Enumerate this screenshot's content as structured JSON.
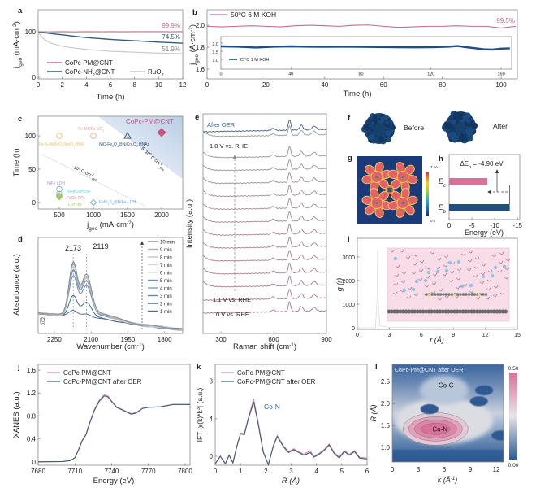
{
  "colors": {
    "pink": "#c9698f",
    "navy": "#1f4e87",
    "steel": "#2f5f80",
    "gray": "#c8c8c8"
  },
  "chart_data": [
    {
      "panel": "a",
      "type": "line",
      "xlabel": "Time (h)",
      "ylabel": "j_{geo} (mA·cm^{-2})",
      "xlim": [
        0,
        12
      ],
      "ylim": [
        0,
        140
      ],
      "xticks": [
        0,
        2,
        4,
        6,
        8,
        10,
        12
      ],
      "yticks": [
        0,
        100
      ],
      "series": [
        {
          "name": "CoPc-PM@CNT",
          "color": "#c9698f",
          "end_label": "99.9%",
          "x": [
            0,
            1,
            2,
            3,
            4,
            5,
            6,
            7,
            8,
            9,
            10,
            11,
            12
          ],
          "y": [
            100,
            99.5,
            100,
            99.6,
            100,
            99.7,
            100,
            99.8,
            100,
            99.9,
            100,
            99.8,
            99.9
          ]
        },
        {
          "name": "CoPc-NH_{2}@CNT",
          "color": "#2f5f80",
          "end_label": "74.5%",
          "x": [
            0,
            1,
            2,
            3,
            4,
            5,
            6,
            7,
            8,
            9,
            10,
            11,
            12
          ],
          "y": [
            100,
            96,
            93,
            90,
            87,
            85,
            83,
            81.5,
            80,
            78.5,
            77,
            75.8,
            74.5
          ]
        },
        {
          "name": "RuO_{2}",
          "color": "#c8c8c8",
          "end_label": "51.9%",
          "x": [
            0,
            0.3,
            0.7,
            1,
            2,
            3,
            4,
            6,
            8,
            10,
            12
          ],
          "y": [
            100,
            88,
            80,
            75,
            68,
            64,
            61,
            57,
            55,
            53,
            51.9
          ]
        }
      ]
    },
    {
      "panel": "b",
      "type": "line",
      "xlabel": "Time (h)",
      "ylabel": "j_{geo} (A·cm^{-2})",
      "xlim": [
        0,
        105
      ],
      "ylim": [
        1.5,
        2.14
      ],
      "xticks": [
        0,
        20,
        40,
        60,
        80,
        100
      ],
      "yticks": [
        1.6,
        1.8,
        2.0
      ],
      "series": [
        {
          "name": "50^{o}C 6 M KOH",
          "color": "#c9698f",
          "end_label": "99.5%",
          "x": [
            0,
            5,
            10,
            15,
            20,
            25,
            30,
            35,
            40,
            45,
            50,
            55,
            60,
            65,
            70,
            75,
            80,
            85,
            90,
            95,
            100,
            105
          ],
          "y": [
            1.99,
            1.985,
            1.99,
            1.995,
            1.99,
            1.985,
            1.995,
            2.0,
            1.995,
            1.99,
            2.0,
            2.002,
            1.99,
            1.98,
            1.985,
            1.99,
            1.99,
            1.995,
            1.99,
            1.99,
            1.975,
            1.99
          ]
        }
      ],
      "inset": {
        "xlim": [
          0,
          166
        ],
        "ylim": [
          0.4,
          2.4
        ],
        "xticks": [
          0,
          40,
          80,
          120,
          160
        ],
        "yticks": [
          1.0,
          1.5,
          2.0
        ],
        "series": [
          {
            "name": "25^{o}C 1 M KOH",
            "color": "#1f4e87",
            "x": [
              0,
              10,
              20,
              30,
              40,
              50,
              60,
              70,
              80,
              90,
              100,
              110,
              120,
              130,
              135,
              140,
              150,
              155,
              160,
              165
            ],
            "y": [
              1.8,
              1.78,
              1.73,
              1.78,
              1.8,
              1.78,
              1.77,
              1.78,
              1.77,
              1.76,
              1.75,
              1.74,
              1.75,
              1.78,
              1.82,
              1.75,
              1.62,
              1.6,
              1.66,
              1.68
            ]
          }
        ]
      }
    },
    {
      "panel": "c",
      "type": "scatter",
      "xlabel": "j_{geo} (mA·cm^{-2})",
      "ylabel": "Time (h)",
      "xlim": [
        190,
        2310
      ],
      "ylim": [
        -10,
        129
      ],
      "xticks": [
        500,
        1000,
        1500,
        2000
      ],
      "yticks": [
        0,
        50,
        100
      ],
      "points": [
        {
          "label": "Fe-S-NiMoO_{4}/MoO_{2}@NF",
          "x": 500,
          "y": 100,
          "marker": "circle",
          "color": "#e8c46a"
        },
        {
          "label": "Fe-MOFs-SO_{4}",
          "x": 1000,
          "y": 100,
          "marker": "circle",
          "color": "#e8a899"
        },
        {
          "label": "NiO-Fe_{3}O_{4}@NiCo_{2}O_{4} HNAs",
          "x": 1500,
          "y": 100,
          "marker": "triangle",
          "color": "#2f4f7a"
        },
        {
          "label": "CoPc-PM@CNT",
          "x": 2000,
          "y": 105,
          "marker": "diamond-filled",
          "color": "#c9557f"
        },
        {
          "label": "NiFe LDH",
          "x": 500,
          "y": 20,
          "marker": "circle",
          "color": "#9a9ad8"
        },
        {
          "label": "NiFeOOH/NF",
          "x": 500,
          "y": 13,
          "marker": "circle",
          "color": "#4fd8e0"
        },
        {
          "label": "FeCo-PPc",
          "x": 500,
          "y": 10,
          "marker": "diamond",
          "color": "#e08a80"
        },
        {
          "label": "LDH-Br",
          "x": 500,
          "y": 8,
          "marker": "diamond-filled",
          "color": "#9ccf60"
        },
        {
          "label": "FeNi_{2}S_{4}@NiFe-LDH",
          "x": 1000,
          "y": 0,
          "marker": "diamond",
          "color": "#6fa4d8"
        }
      ],
      "reference_lines": [
        {
          "label": "10^{5} C·cm^{-2}_{geo}",
          "from": [
            250,
            72
          ],
          "to": [
            1750,
            -5
          ]
        },
        {
          "label": "5×10^{5} C·cm^{-2}_{geo}",
          "from": [
            1080,
            129
          ],
          "to": [
            2310,
            36
          ]
        }
      ]
    },
    {
      "panel": "d",
      "type": "line",
      "xlabel": "Wavenumber (cm^{-1})",
      "ylabel": "Absorbance (a.u.)",
      "xlim": [
        2316,
        1726
      ],
      "xticks": [
        2250,
        2100,
        1950,
        1800
      ],
      "peaks": [
        2173,
        2119
      ],
      "peak_labels": [
        "2173",
        "2119"
      ],
      "scale_bar": "0.02",
      "series_names": [
        "10 min",
        "9 min",
        "8 min",
        "7 min",
        "6 min",
        "5 min",
        "4 min",
        "3 min",
        "2 min",
        "1 min"
      ],
      "series_colors": [
        "#8a8a8a",
        "#b0b0b0",
        "#c4c4c4",
        "#d6d6d6",
        "#d9dde2",
        "#6a8fb5",
        "#7ea3c6",
        "#5f88b0",
        "#3d6a92",
        "#55708a"
      ],
      "peak_intensity": [
        1.0,
        0.98,
        0.96,
        0.94,
        0.92,
        0.88,
        0.84,
        0.76,
        0.4,
        0.1
      ]
    },
    {
      "panel": "e",
      "type": "line",
      "xlabel": "Raman shift (cm^{-1})",
      "ylabel": "Intensity (a.u.)",
      "xlim": [
        198,
        900
      ],
      "xticks": [
        300,
        600,
        900
      ],
      "peaks": [
        597,
        690,
        757,
        830
      ],
      "curve_labels": {
        "top": "After OER",
        "high": "1.8 V vs. RHE",
        "low": "1.1 V vs. RHE",
        "bottom": "0 V vs. RHE"
      },
      "curve_count": 15
    },
    {
      "panel": "f",
      "type": "image",
      "labels": [
        "Before",
        "After"
      ]
    },
    {
      "panel": "g",
      "type": "heatmap",
      "colorbar": {
        "max": "7.1e^{-1}",
        "min": "0.0"
      }
    },
    {
      "panel": "h",
      "type": "bar",
      "xlabel": "Energy (eV)",
      "xlim": [
        0,
        -15.5
      ],
      "xticks": [
        0,
        -5,
        -10,
        -15
      ],
      "categories": [
        "E_{c}",
        "E_{b}"
      ],
      "values": [
        -8.4,
        -13.3
      ],
      "colors": [
        "#d7739a",
        "#1f4e87"
      ],
      "annotation": "ΔE_{b} = -4.90 eV"
    },
    {
      "panel": "i",
      "type": "line",
      "xlabel": "r (Å)",
      "ylabel": "g (r)",
      "xlim": [
        0,
        15
      ],
      "ylim": [
        -70,
        3790
      ],
      "xticks": [
        0,
        3,
        6,
        9,
        12,
        15
      ],
      "yticks": [
        0,
        1000,
        2000,
        3000
      ],
      "series": [
        {
          "x": [
            0,
            1.7,
            1.85,
            1.9,
            1.95,
            2.1,
            3,
            6,
            9,
            12,
            15
          ],
          "y": [
            0,
            0,
            1200,
            3300,
            1200,
            80,
            20,
            5,
            3,
            2,
            2
          ],
          "color": "#dddddd"
        }
      ]
    },
    {
      "panel": "j",
      "type": "line",
      "xlabel": "Energy (eV)",
      "ylabel": "XANES (a.u.)",
      "xlim": [
        7680,
        7804
      ],
      "ylim": [
        -0.06,
        1.7
      ],
      "xticks": [
        7680,
        7710,
        7740,
        7770,
        7800
      ],
      "yticks": [
        0,
        0.4,
        0.8,
        1.2,
        1.6
      ],
      "series": [
        {
          "name": "CoPc-PM@CNT",
          "color": "#d88aa5",
          "x": [
            7680,
            7700,
            7706,
            7710,
            7713,
            7716,
            7719,
            7722,
            7726,
            7730,
            7734,
            7737,
            7740,
            7744,
            7748,
            7752,
            7756,
            7760,
            7765,
            7770,
            7780,
            7790,
            7804
          ],
          "y": [
            0,
            0.005,
            0.02,
            0.07,
            0.22,
            0.38,
            0.48,
            0.68,
            0.92,
            1.08,
            1.17,
            1.15,
            1.06,
            0.96,
            0.92,
            0.88,
            0.84,
            0.86,
            0.93,
            0.95,
            0.96,
            1.0,
            1.0
          ]
        },
        {
          "name": "CoPc-PM@CNT after OER",
          "color": "#3c5a78",
          "x": [
            7680,
            7700,
            7706,
            7710,
            7713,
            7716,
            7719,
            7722,
            7726,
            7730,
            7734,
            7737,
            7740,
            7744,
            7748,
            7752,
            7756,
            7760,
            7765,
            7770,
            7780,
            7790,
            7804
          ],
          "y": [
            0,
            0.005,
            0.02,
            0.07,
            0.21,
            0.37,
            0.47,
            0.67,
            0.9,
            1.06,
            1.15,
            1.13,
            1.05,
            0.95,
            0.91,
            0.87,
            0.83,
            0.85,
            0.93,
            0.95,
            0.96,
            1.0,
            1.0
          ]
        }
      ]
    },
    {
      "panel": "k",
      "type": "line",
      "xlabel": "R (Å)",
      "ylabel": "IFT |χ(k)*k^{3}| (a.u.)",
      "xlim": [
        0,
        6
      ],
      "ylim": [
        -0.96,
        9.8
      ],
      "xticks": [
        0,
        1,
        2,
        3,
        4,
        5,
        6
      ],
      "yticks": [
        0,
        4,
        8
      ],
      "annotation": "Co-N",
      "series": [
        {
          "name": "CoPc-PM@CNT",
          "color": "#d88aa5",
          "x": [
            0,
            0.2,
            0.4,
            0.55,
            0.7,
            0.85,
            1.0,
            1.15,
            1.3,
            1.52,
            1.7,
            1.9,
            2.1,
            2.3,
            2.45,
            2.7,
            2.9,
            3.1,
            3.3,
            3.5,
            3.75,
            3.9,
            4.1,
            4.3,
            4.5,
            4.7,
            4.9,
            5.1,
            5.3,
            5.5,
            5.7,
            6.0
          ],
          "y": [
            -0.8,
            0,
            -0.8,
            0.1,
            -0.7,
            1.0,
            2.5,
            2.4,
            4.0,
            6.1,
            3.6,
            0.5,
            -0.9,
            1.2,
            2.2,
            1.1,
            0.5,
            0.8,
            0.5,
            0.2,
            0.6,
            0.0,
            0.3,
            0.7,
            1.3,
            0.4,
            -0.1,
            0.6,
            0.2,
            0.6,
            -0.1,
            -0.2
          ]
        },
        {
          "name": "CoPc-PM@CNT after OER",
          "color": "#3c5a78",
          "x": [
            0,
            0.2,
            0.4,
            0.55,
            0.7,
            0.85,
            1.0,
            1.15,
            1.3,
            1.52,
            1.7,
            1.9,
            2.1,
            2.3,
            2.45,
            2.7,
            2.9,
            3.1,
            3.3,
            3.5,
            3.75,
            3.9,
            4.1,
            4.3,
            4.5,
            4.7,
            4.9,
            5.1,
            5.3,
            5.5,
            5.7,
            6.0
          ],
          "y": [
            -0.8,
            0,
            -0.8,
            0.1,
            -0.7,
            1.0,
            2.4,
            2.3,
            3.9,
            5.8,
            3.4,
            0.4,
            -0.9,
            1.1,
            2.1,
            1.0,
            0.4,
            0.7,
            0.4,
            0.1,
            0.4,
            -0.1,
            0.2,
            0.6,
            1.2,
            0.3,
            -0.2,
            0.5,
            0.1,
            0.5,
            -0.2,
            -0.3
          ]
        }
      ]
    },
    {
      "panel": "l",
      "type": "heatmap",
      "title": "CoPc-PM@CNT after OER",
      "xlabel": "k (Å^{-1})",
      "ylabel": "R (Å)",
      "xlim": [
        0,
        12.84
      ],
      "ylim": [
        0.667,
        2.89
      ],
      "xticks": [
        0,
        3,
        6,
        9,
        12
      ],
      "yticks": [
        1.0,
        1.5,
        2.0,
        2.5
      ],
      "annotations": [
        {
          "text": "Co-N",
          "k": 5.5,
          "R": 1.42
        },
        {
          "text": "Co-C",
          "k": 6.2,
          "R": 2.42
        }
      ],
      "features": [
        {
          "k": 5.0,
          "R": 1.42,
          "level": 0.5
        },
        {
          "k": 4.3,
          "R": 1.87,
          "level": 0.0
        },
        {
          "k": 10.6,
          "R": 2.3,
          "level": 0.0
        },
        {
          "k": 10.0,
          "R": 2.05,
          "level": 0.0
        },
        {
          "k": 12.5,
          "R": 1.27,
          "level": 0.0
        }
      ],
      "colorbar": {
        "max": "0.50",
        "min": "0.00",
        "colors": [
          "#2d5a94",
          "#e8e4e6",
          "#d97098"
        ]
      }
    }
  ]
}
